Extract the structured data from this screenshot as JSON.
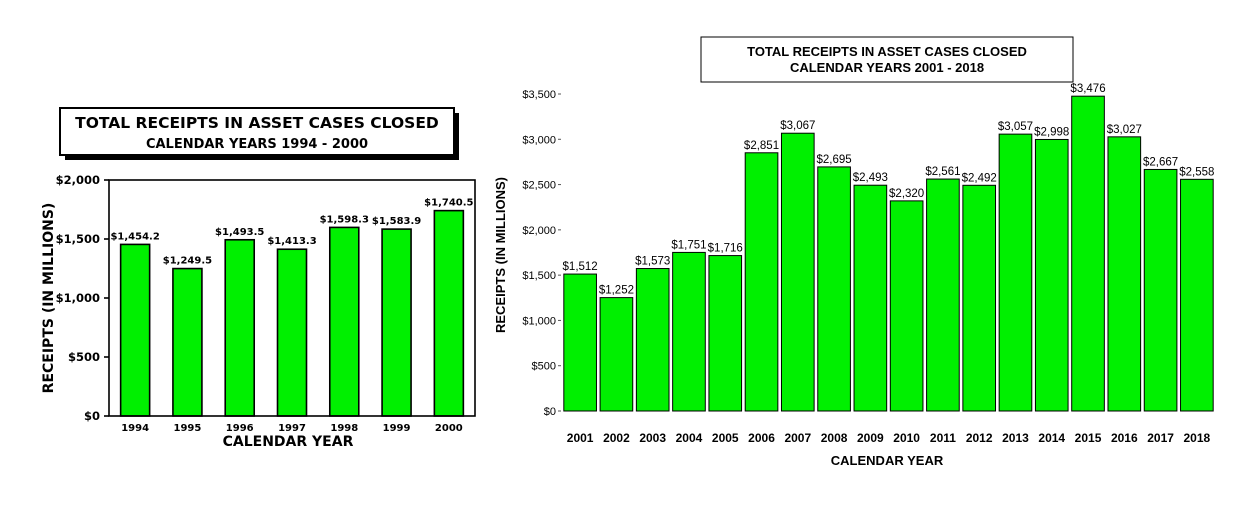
{
  "chart_data": [
    {
      "type": "bar",
      "title": "TOTAL RECEIPTS IN ASSET CASES CLOSED",
      "subtitle": "CALENDAR YEARS 1994 - 2000",
      "xlabel": "CALENDAR YEAR",
      "ylabel": "RECEIPTS (IN MILLIONS)",
      "ylim": [
        0,
        2000
      ],
      "y_ticks": [
        0,
        500,
        1000,
        1500,
        2000
      ],
      "y_tick_labels": [
        "$0",
        "$500",
        "$1,000",
        "$1,500",
        "$2,000"
      ],
      "categories": [
        "1994",
        "1995",
        "1996",
        "1997",
        "1998",
        "1999",
        "2000"
      ],
      "values": [
        1454.2,
        1249.5,
        1493.5,
        1413.3,
        1598.3,
        1583.9,
        1740.5
      ],
      "value_labels": [
        "$1,454.2",
        "$1,249.5",
        "$1,493.5",
        "$1,413.3",
        "$1,598.3",
        "$1,583.9",
        "$1,740.5"
      ],
      "bar_color": "#00f000",
      "grid": false
    },
    {
      "type": "bar",
      "title": "TOTAL RECEIPTS IN ASSET CASES CLOSED",
      "subtitle": "CALENDAR YEARS 2001 - 2018",
      "xlabel": "CALENDAR YEAR",
      "ylabel": "RECEIPTS (IN MILLIONS)",
      "ylim": [
        0,
        3500
      ],
      "y_ticks": [
        0,
        500,
        1000,
        1500,
        2000,
        2500,
        3000,
        3500
      ],
      "y_tick_labels": [
        "$0",
        "$500",
        "$1,000",
        "$1,500",
        "$2,000",
        "$2,500",
        "$3,000",
        "$3,500"
      ],
      "categories": [
        "2001",
        "2002",
        "2003",
        "2004",
        "2005",
        "2006",
        "2007",
        "2008",
        "2009",
        "2010",
        "2011",
        "2012",
        "2013",
        "2014",
        "2015",
        "2016",
        "2017",
        "2018"
      ],
      "values": [
        1512,
        1252,
        1573,
        1751,
        1716,
        2851,
        3067,
        2695,
        2493,
        2320,
        2561,
        2492,
        3057,
        2998,
        3476,
        3027,
        2667,
        2558
      ],
      "value_labels": [
        "$1,512",
        "$1,252",
        "$1,573",
        "$1,751",
        "$1,716",
        "$2,851",
        "$3,067",
        "$2,695",
        "$2,493",
        "$2,320",
        "$2,561",
        "$2,492",
        "$3,057",
        "$2,998",
        "$3,476",
        "$3,027",
        "$2,667",
        "$2,558"
      ],
      "bar_color": "#00f000",
      "grid": false
    }
  ]
}
